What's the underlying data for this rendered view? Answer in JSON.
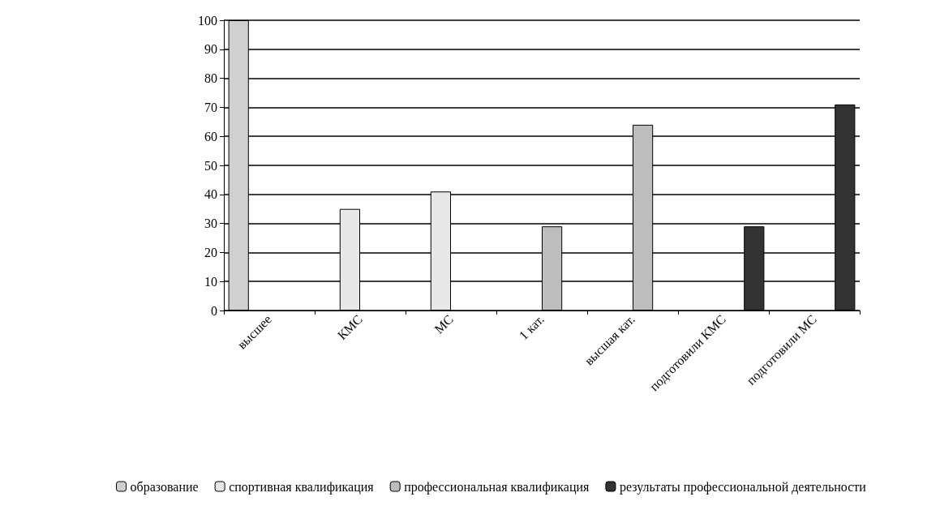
{
  "chart_data": {
    "type": "bar",
    "categories": [
      "высшее",
      "КМС",
      "МС",
      "1 кат.",
      "высшая кат.",
      "подготовили КМС",
      "подготовили МС"
    ],
    "series": [
      {
        "name": "образование",
        "color": "#d0d0d0",
        "values": [
          100,
          null,
          null,
          null,
          null,
          null,
          null
        ]
      },
      {
        "name": "спортивная квалификация",
        "color": "#e8e8e8",
        "values": [
          null,
          35,
          41,
          null,
          null,
          null,
          null
        ]
      },
      {
        "name": "профессиональная квалификация",
        "color": "#bdbdbd",
        "values": [
          null,
          null,
          null,
          29,
          64,
          null,
          null
        ]
      },
      {
        "name": "результаты профессиональной деятельности",
        "color": "#333333",
        "values": [
          null,
          null,
          null,
          null,
          null,
          29,
          71
        ]
      }
    ],
    "ylim": [
      0,
      100
    ],
    "yticks": [
      0,
      10,
      20,
      30,
      40,
      50,
      60,
      70,
      80,
      90,
      100
    ],
    "grid": "y",
    "legend": "bottom"
  }
}
